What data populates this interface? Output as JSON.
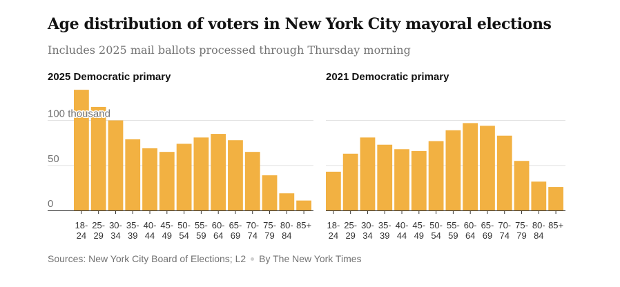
{
  "title": "Age distribution of voters in New York City mayoral elections",
  "subtitle": "Includes 2025 mail ballots processed through Thursday morning",
  "footer": {
    "sources": "Sources: New York City Board of Elections; L2",
    "byline": "By The New York Times"
  },
  "colors": {
    "bar": "#f2b142",
    "grid": "#e2e2e2",
    "axis": "#333333",
    "tick_text": "#333333",
    "axis_label_text": "#727272"
  },
  "chart_data": [
    {
      "type": "bar",
      "title": "2025 Democratic primary",
      "categories": [
        "18-24",
        "25-29",
        "30-34",
        "35-39",
        "40-44",
        "45-49",
        "50-54",
        "55-59",
        "60-64",
        "65-69",
        "70-74",
        "75-79",
        "80-84",
        "85+"
      ],
      "category_lines": [
        [
          "18-",
          "24"
        ],
        [
          "25-",
          "29"
        ],
        [
          "30-",
          "34"
        ],
        [
          "35-",
          "39"
        ],
        [
          "40-",
          "44"
        ],
        [
          "45-",
          "49"
        ],
        [
          "50-",
          "54"
        ],
        [
          "55-",
          "59"
        ],
        [
          "60-",
          "64"
        ],
        [
          "65-",
          "69"
        ],
        [
          "70-",
          "74"
        ],
        [
          "75-",
          "79"
        ],
        [
          "80-",
          "84"
        ],
        [
          "85+",
          ""
        ]
      ],
      "values": [
        134,
        115,
        100,
        79,
        69,
        65,
        74,
        81,
        85,
        78,
        65,
        39,
        19,
        11
      ],
      "ylim": [
        0,
        135
      ],
      "yticks": [
        0,
        50,
        100
      ],
      "ytick_labels": [
        "0",
        "50",
        "100 thousand"
      ],
      "grid": true
    },
    {
      "type": "bar",
      "title": "2021 Democratic primary",
      "categories": [
        "18-24",
        "25-29",
        "30-34",
        "35-39",
        "40-44",
        "45-49",
        "50-54",
        "55-59",
        "60-64",
        "65-69",
        "70-74",
        "75-79",
        "80-84",
        "85+"
      ],
      "category_lines": [
        [
          "18-",
          "24"
        ],
        [
          "25-",
          "29"
        ],
        [
          "30-",
          "34"
        ],
        [
          "35-",
          "39"
        ],
        [
          "40-",
          "44"
        ],
        [
          "45-",
          "49"
        ],
        [
          "50-",
          "54"
        ],
        [
          "55-",
          "59"
        ],
        [
          "60-",
          "64"
        ],
        [
          "65-",
          "69"
        ],
        [
          "70-",
          "74"
        ],
        [
          "75-",
          "79"
        ],
        [
          "80-",
          "84"
        ],
        [
          "85+",
          ""
        ]
      ],
      "values": [
        43,
        63,
        81,
        73,
        68,
        66,
        77,
        89,
        97,
        94,
        83,
        55,
        32,
        26
      ],
      "ylim": [
        0,
        135
      ],
      "yticks": [
        0,
        50,
        100
      ],
      "grid": true
    }
  ]
}
